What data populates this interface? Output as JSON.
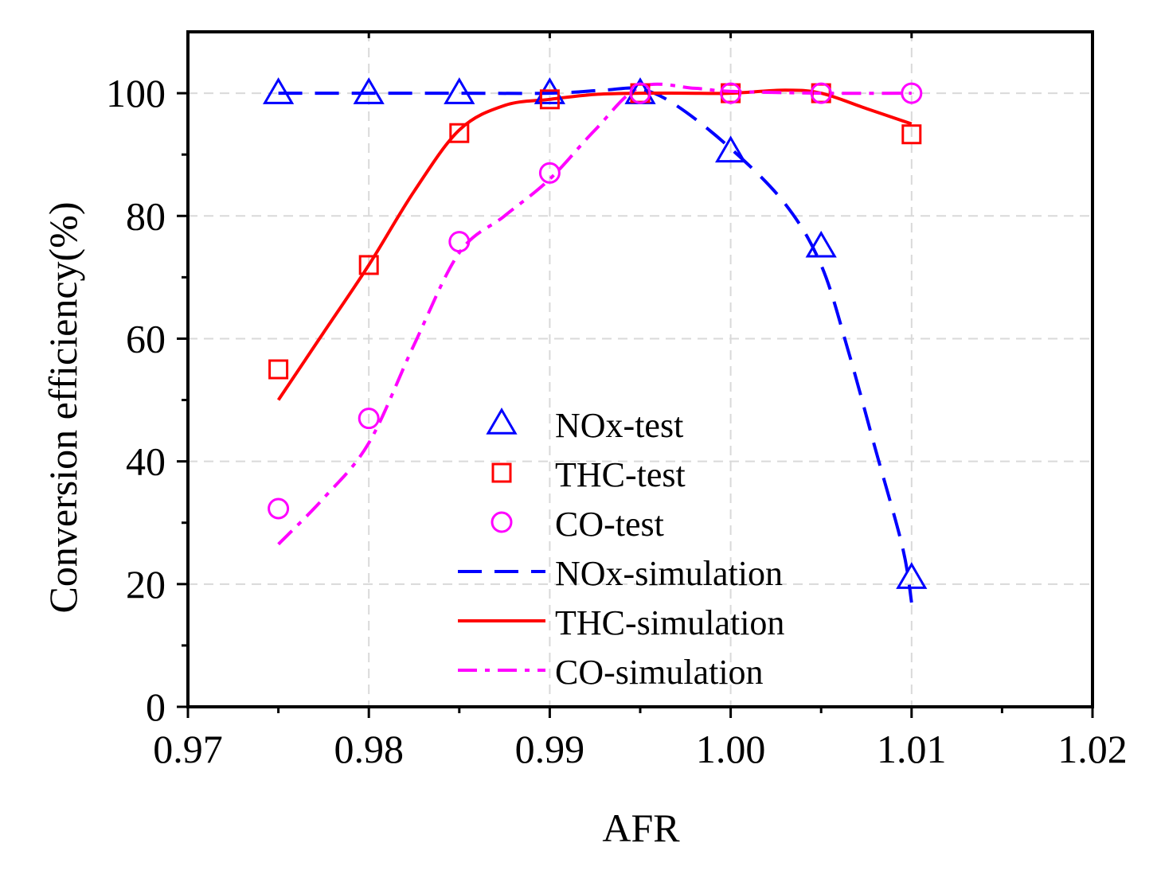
{
  "chart_data": {
    "type": "line",
    "title": "",
    "xlabel": "AFR",
    "ylabel": "Conversion efficiency(%)",
    "xlim": [
      0.97,
      1.02
    ],
    "ylim": [
      0,
      110
    ],
    "xticks": [
      0.97,
      0.98,
      0.99,
      1.0,
      1.01,
      1.02
    ],
    "xtick_labels": [
      "0.97",
      "0.98",
      "0.99",
      "1.00",
      "1.01",
      "1.02"
    ],
    "yticks": [
      0,
      20,
      40,
      60,
      80,
      100
    ],
    "ytick_labels": [
      "0",
      "20",
      "40",
      "60",
      "80",
      "100"
    ],
    "grid": true,
    "legend_position": "center-bottom",
    "test_series": [
      {
        "name": "NOx-test",
        "marker": "triangle",
        "color": "#0000ff",
        "x": [
          0.975,
          0.98,
          0.985,
          0.99,
          0.995,
          1.0,
          1.005,
          1.01
        ],
        "y": [
          100,
          100,
          100,
          100,
          100,
          90.5,
          75,
          21
        ]
      },
      {
        "name": "THC-test",
        "marker": "square",
        "color": "#ff0000",
        "x": [
          0.975,
          0.98,
          0.985,
          0.99,
          0.995,
          1.0,
          1.005,
          1.01
        ],
        "y": [
          55,
          72,
          93.5,
          99,
          100,
          100,
          100,
          93.3
        ]
      },
      {
        "name": "CO-test",
        "marker": "circle",
        "color": "#ff00ff",
        "x": [
          0.975,
          0.98,
          0.985,
          0.99,
          0.995,
          1.0,
          1.005,
          1.01
        ],
        "y": [
          32.3,
          47,
          75.8,
          87,
          100,
          100,
          100,
          100
        ]
      }
    ],
    "simulation_series": [
      {
        "name": "NOx-simulation",
        "style": "dash",
        "color": "#0000ff",
        "x": [
          0.975,
          0.98,
          0.985,
          0.99,
          0.993,
          0.995,
          0.997,
          1.0,
          1.003,
          1.005,
          1.0065,
          1.008,
          1.0095,
          1.01
        ],
        "y": [
          100,
          100,
          100,
          100,
          100.5,
          100.7,
          98,
          91,
          82,
          72,
          58,
          42,
          26,
          17
        ]
      },
      {
        "name": "THC-simulation",
        "style": "solid",
        "color": "#ff0000",
        "x": [
          0.975,
          0.9775,
          0.98,
          0.9825,
          0.985,
          0.9875,
          0.99,
          0.9925,
          0.995,
          0.9975,
          1.0,
          1.003,
          1.005,
          1.0075,
          1.01
        ],
        "y": [
          50,
          61,
          72,
          84,
          94,
          98,
          99,
          99.8,
          100,
          100,
          100,
          100.5,
          100,
          97.5,
          95
        ]
      },
      {
        "name": "CO-simulation",
        "style": "dashdot",
        "color": "#ff00ff",
        "x": [
          0.975,
          0.9775,
          0.98,
          0.9825,
          0.985,
          0.9875,
          0.99,
          0.9925,
          0.995,
          0.998,
          1.0,
          1.005,
          1.01
        ],
        "y": [
          26.5,
          34,
          43,
          59,
          74,
          80,
          86,
          94,
          101,
          100.8,
          100.3,
          100,
          100
        ]
      }
    ]
  }
}
